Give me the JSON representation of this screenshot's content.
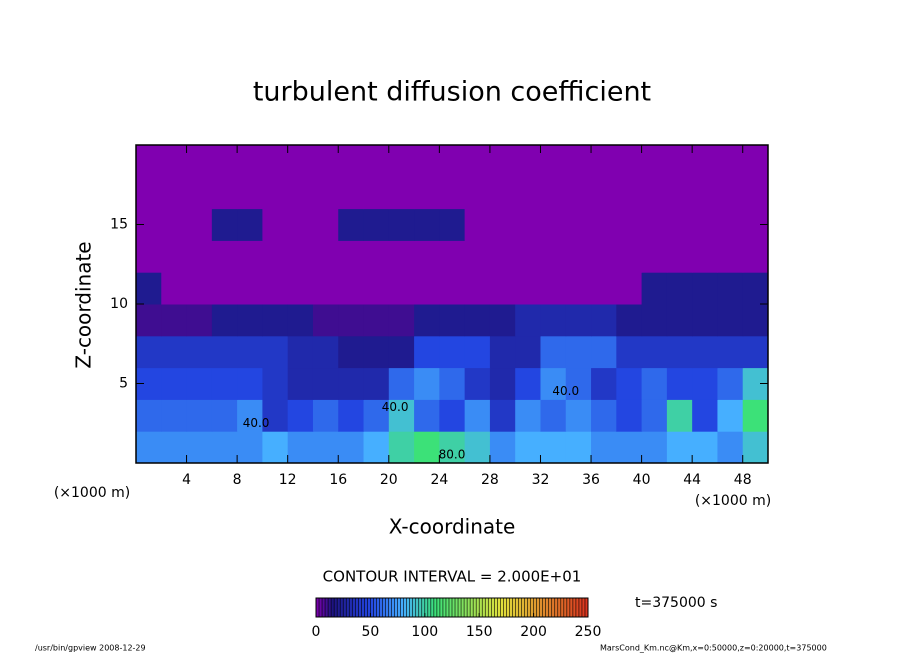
{
  "chart_data": {
    "type": "heatmap",
    "title": "turbulent diffusion coefficient",
    "xlabel": "X-coordinate",
    "ylabel": "Z-coordinate",
    "xunit": "(×1000 m)",
    "yunit": "(×1000 m)",
    "x": [
      1,
      3,
      5,
      7,
      9,
      11,
      13,
      15,
      17,
      19,
      21,
      23,
      25,
      27,
      29,
      31,
      33,
      35,
      37,
      39,
      41,
      43,
      45,
      47,
      49
    ],
    "z": [
      1,
      3,
      5,
      7,
      9,
      11,
      13,
      15,
      17,
      19
    ],
    "values": [
      [
        70,
        70,
        70,
        70,
        70,
        80,
        70,
        70,
        70,
        80,
        100,
        110,
        100,
        90,
        70,
        80,
        80,
        80,
        70,
        70,
        70,
        80,
        80,
        70,
        90
      ],
      [
        60,
        60,
        60,
        60,
        70,
        40,
        50,
        60,
        50,
        60,
        90,
        60,
        50,
        70,
        40,
        70,
        60,
        70,
        60,
        50,
        60,
        100,
        50,
        80,
        110
      ],
      [
        50,
        50,
        50,
        50,
        50,
        40,
        30,
        30,
        30,
        30,
        60,
        70,
        60,
        40,
        30,
        50,
        70,
        60,
        40,
        50,
        60,
        50,
        50,
        60,
        90
      ],
      [
        40,
        40,
        40,
        40,
        40,
        40,
        30,
        30,
        20,
        20,
        20,
        50,
        50,
        50,
        30,
        30,
        60,
        60,
        60,
        40,
        40,
        40,
        40,
        40,
        40
      ],
      [
        10,
        10,
        10,
        20,
        20,
        20,
        20,
        10,
        10,
        10,
        10,
        20,
        20,
        20,
        20,
        30,
        30,
        30,
        30,
        20,
        20,
        20,
        20,
        20,
        20
      ],
      [
        20,
        0,
        0,
        0,
        0,
        0,
        0,
        0,
        0,
        0,
        0,
        0,
        0,
        0,
        0,
        0,
        0,
        0,
        0,
        0,
        20,
        20,
        20,
        20,
        20
      ],
      [
        0,
        0,
        0,
        0,
        0,
        0,
        0,
        0,
        0,
        0,
        0,
        0,
        0,
        0,
        0,
        0,
        0,
        0,
        0,
        0,
        0,
        0,
        0,
        0,
        0
      ],
      [
        0,
        0,
        0,
        20,
        20,
        0,
        0,
        0,
        20,
        20,
        20,
        20,
        20,
        0,
        0,
        0,
        0,
        0,
        0,
        0,
        0,
        0,
        0,
        0,
        0
      ],
      [
        0,
        0,
        0,
        0,
        0,
        0,
        0,
        0,
        0,
        0,
        0,
        0,
        0,
        0,
        0,
        0,
        0,
        0,
        0,
        0,
        0,
        0,
        0,
        0,
        0
      ],
      [
        0,
        0,
        0,
        0,
        0,
        0,
        0,
        0,
        0,
        0,
        0,
        0,
        0,
        0,
        0,
        0,
        0,
        0,
        0,
        0,
        0,
        0,
        0,
        0,
        0
      ]
    ],
    "annotations": [
      {
        "text": "40.0",
        "x": 9.5,
        "z": 2.5
      },
      {
        "text": "40.0",
        "x": 20.5,
        "z": 3.5
      },
      {
        "text": "40.0",
        "x": 34,
        "z": 4.5
      },
      {
        "text": "80.0",
        "x": 25,
        "z": 0.5
      }
    ],
    "xlim": [
      0,
      50
    ],
    "ylim": [
      0,
      20
    ],
    "xticks": [
      4,
      8,
      12,
      16,
      20,
      24,
      28,
      32,
      36,
      40,
      44,
      48
    ],
    "yticks": [
      5,
      10,
      15
    ],
    "clim": [
      0,
      250
    ],
    "cticks": [
      0,
      50,
      100,
      150,
      200,
      250
    ],
    "contour_interval": "CONTOUR INTERVAL = 2.000E+01",
    "time_label": "t=375000 s",
    "footer_left": "/usr/bin/gpview  2008-12-29",
    "footer_right": "MarsCond_Km.nc@Km,x=0:50000,z=0:20000,t=375000"
  }
}
